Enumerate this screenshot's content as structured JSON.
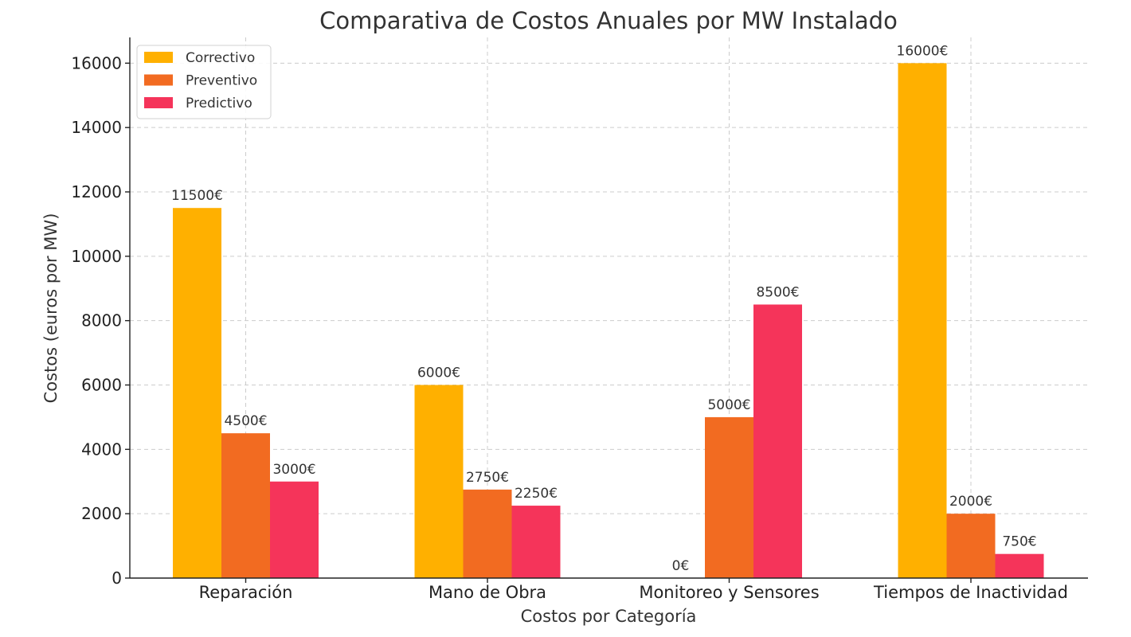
{
  "chart_data": {
    "type": "bar",
    "title": "Comparativa de Costos Anuales por MW Instalado",
    "xlabel": "Costos por Categoría",
    "ylabel": "Costos (euros por MW)",
    "categories": [
      "Reparación",
      "Mano de Obra",
      "Monitoreo y Sensores",
      "Tiempos de Inactividad"
    ],
    "series": [
      {
        "name": "Correctivo",
        "color": "#FFB000",
        "values": [
          11500,
          6000,
          0,
          16000
        ]
      },
      {
        "name": "Preventivo",
        "color": "#F26B21",
        "values": [
          4500,
          2750,
          5000,
          2000
        ]
      },
      {
        "name": "Predictivo",
        "color": "#F5345A",
        "values": [
          3000,
          2250,
          8500,
          750
        ]
      }
    ],
    "value_suffix": "€",
    "ylim": [
      0,
      16800
    ],
    "yticks": [
      0,
      2000,
      4000,
      6000,
      8000,
      10000,
      12000,
      14000,
      16000
    ],
    "grid": true,
    "legend_position": "top-left"
  }
}
